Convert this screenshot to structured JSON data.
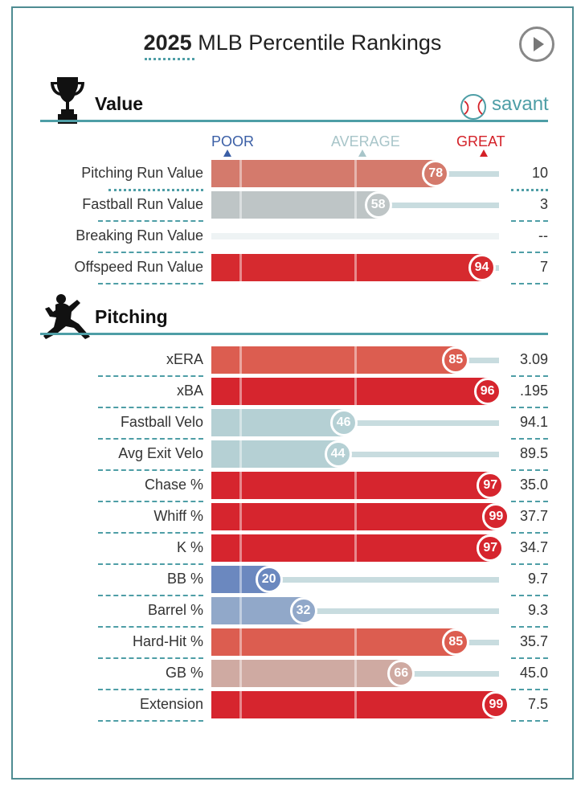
{
  "header": {
    "year": "2025",
    "title": "MLB Percentile Rankings"
  },
  "sections": {
    "value": {
      "title": "Value"
    },
    "pitching": {
      "title": "Pitching"
    }
  },
  "brand": {
    "name": "savant"
  },
  "scale": {
    "poor": "POOR",
    "average": "AVERAGE",
    "great": "GREAT"
  },
  "colors": {
    "accent": "#4e9ea6",
    "poor": "#3b5fa6",
    "average": "#a8c5c9",
    "great": "#d42128"
  },
  "chart_data": {
    "type": "bar",
    "title": "2025 MLB Percentile Rankings",
    "xlim": [
      0,
      100
    ],
    "value_rows": [
      {
        "name": "Pitching Run Value",
        "percentile": 78,
        "value": "10",
        "color": "#d47a6c",
        "selected": true
      },
      {
        "name": "Fastball Run Value",
        "percentile": 58,
        "value": "3",
        "color": "#bec5c6"
      },
      {
        "name": "Breaking Run Value",
        "percentile": null,
        "value": "--",
        "color": "#eef3f4"
      },
      {
        "name": "Offspeed Run Value",
        "percentile": 94,
        "value": "7",
        "color": "#d62a2f"
      }
    ],
    "pitching_rows": [
      {
        "name": "xERA",
        "percentile": 85,
        "value": "3.09",
        "color": "#dc5d50"
      },
      {
        "name": "xBA",
        "percentile": 96,
        "value": ".195",
        "color": "#d6252e"
      },
      {
        "name": "Fastball Velo",
        "percentile": 46,
        "value": "94.1",
        "color": "#b5d0d4"
      },
      {
        "name": "Avg Exit Velo",
        "percentile": 44,
        "value": "89.5",
        "color": "#b5d0d4"
      },
      {
        "name": "Chase %",
        "percentile": 97,
        "value": "35.0",
        "color": "#d6252e"
      },
      {
        "name": "Whiff %",
        "percentile": 99,
        "value": "37.7",
        "color": "#d6252e"
      },
      {
        "name": "K %",
        "percentile": 97,
        "value": "34.7",
        "color": "#d6252e"
      },
      {
        "name": "BB %",
        "percentile": 20,
        "value": "9.7",
        "color": "#6b88bf"
      },
      {
        "name": "Barrel %",
        "percentile": 32,
        "value": "9.3",
        "color": "#91a8c9"
      },
      {
        "name": "Hard-Hit %",
        "percentile": 85,
        "value": "35.7",
        "color": "#dc5d50"
      },
      {
        "name": "GB %",
        "percentile": 66,
        "value": "45.0",
        "color": "#cfaaa2"
      },
      {
        "name": "Extension",
        "percentile": 99,
        "value": "7.5",
        "color": "#d6252e"
      }
    ]
  }
}
